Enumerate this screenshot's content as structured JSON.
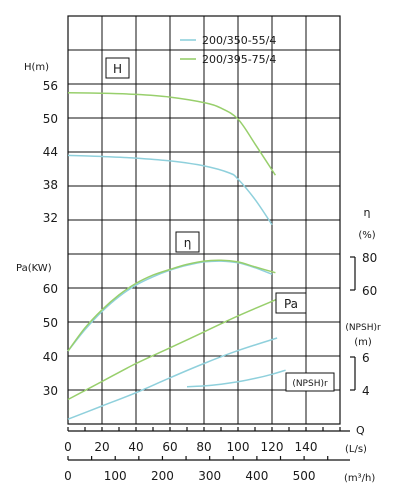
{
  "chart_data": {
    "type": "line",
    "legend": {
      "placement": "top-right",
      "entries": [
        {
          "label": "200/350-55/4",
          "color": "#8fd0dc"
        },
        {
          "label": "200/395-75/4",
          "color": "#98cf6c"
        }
      ]
    },
    "panel_labels": {
      "H": "H",
      "eta": "η",
      "Pa": "Pa",
      "npsh": "(NPSH)r"
    },
    "axis_labels": {
      "H": "H(m)",
      "Pa": "Pa(KW)",
      "eta_symbol": "η",
      "eta_unit": "(%)",
      "npsh_label": "(NPSH)r",
      "npsh_unit": "(m)",
      "Q_symbol": "Q",
      "Q_ls_unit": "(L/s)",
      "Q_m3h_unit": "(m³/h)"
    },
    "ticks": {
      "H": [
        "56",
        "50",
        "44",
        "38",
        "32"
      ],
      "Pa": [
        "60",
        "50",
        "40",
        "30"
      ],
      "eta": [
        "80",
        "60"
      ],
      "npsh": [
        "6",
        "4"
      ],
      "Q_ls": [
        "0",
        "20",
        "40",
        "60",
        "80",
        "100",
        "120",
        "140"
      ],
      "Q_m3h": [
        "0",
        "100",
        "200",
        "300",
        "400",
        "500"
      ]
    },
    "series": [
      {
        "name": "200/350-55/4",
        "variable": "H",
        "unit": "m",
        "color": "#8fd0dc",
        "points": [
          [
            0,
            43.2
          ],
          [
            20,
            43.0
          ],
          [
            40,
            42.7
          ],
          [
            60,
            42.2
          ],
          [
            80,
            41.3
          ],
          [
            95,
            40.0
          ],
          [
            100,
            38.9
          ],
          [
            110,
            35.2
          ],
          [
            120,
            30.6
          ]
        ]
      },
      {
        "name": "200/395-75/4",
        "variable": "H",
        "unit": "m",
        "color": "#98cf6c",
        "points": [
          [
            0,
            54.6
          ],
          [
            20,
            54.5
          ],
          [
            40,
            54.3
          ],
          [
            60,
            53.8
          ],
          [
            80,
            52.8
          ],
          [
            90,
            51.8
          ],
          [
            100,
            49.8
          ],
          [
            110,
            45.3
          ],
          [
            122,
            39.6
          ]
        ]
      },
      {
        "name": "200/350-55/4",
        "variable": "eta",
        "unit": "%",
        "color": "#8fd0dc",
        "points": [
          [
            0,
            23
          ],
          [
            10,
            36
          ],
          [
            20,
            47
          ],
          [
            30,
            56
          ],
          [
            40,
            63
          ],
          [
            50,
            68
          ],
          [
            60,
            72
          ],
          [
            70,
            75
          ],
          [
            80,
            77
          ],
          [
            90,
            77.5
          ],
          [
            100,
            76.5
          ],
          [
            110,
            73.5
          ],
          [
            120,
            69.5
          ]
        ]
      },
      {
        "name": "200/395-75/4",
        "variable": "eta",
        "unit": "%",
        "color": "#98cf6c",
        "points": [
          [
            0,
            23
          ],
          [
            10,
            37
          ],
          [
            20,
            48
          ],
          [
            30,
            57
          ],
          [
            40,
            64
          ],
          [
            50,
            69
          ],
          [
            60,
            72.5
          ],
          [
            70,
            75.5
          ],
          [
            80,
            77.5
          ],
          [
            90,
            78
          ],
          [
            100,
            77
          ],
          [
            110,
            74
          ],
          [
            122,
            70.5
          ]
        ]
      },
      {
        "name": "200/350-55/4",
        "variable": "Pa",
        "unit": "KW",
        "color": "#8fd0dc",
        "points": [
          [
            0,
            21.4
          ],
          [
            20,
            25.3
          ],
          [
            40,
            29.2
          ],
          [
            60,
            33.6
          ],
          [
            80,
            37.8
          ],
          [
            100,
            41.6
          ],
          [
            123,
            45.3
          ]
        ]
      },
      {
        "name": "200/395-75/4",
        "variable": "Pa",
        "unit": "KW",
        "color": "#98cf6c",
        "points": [
          [
            0,
            27.2
          ],
          [
            20,
            32.5
          ],
          [
            40,
            37.8
          ],
          [
            60,
            42.4
          ],
          [
            80,
            47.1
          ],
          [
            100,
            51.8
          ],
          [
            123,
            56.7
          ]
        ]
      },
      {
        "name": "200/350-55/4",
        "variable": "NPSHr",
        "unit": "m",
        "color": "#8fd0dc",
        "points": [
          [
            70,
            4.2
          ],
          [
            80,
            4.25
          ],
          [
            90,
            4.35
          ],
          [
            100,
            4.5
          ],
          [
            110,
            4.7
          ],
          [
            120,
            4.95
          ],
          [
            128,
            5.2
          ]
        ]
      }
    ]
  }
}
